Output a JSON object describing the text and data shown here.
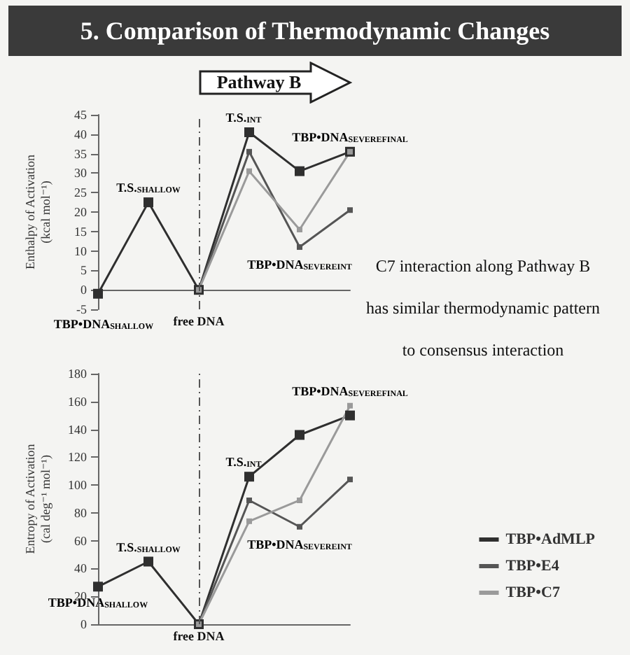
{
  "chart_data": [
    {
      "type": "line",
      "title": "5. Comparison of Thermodynamic Changes",
      "ylabel": "Enthalpy of Activation\n(kcal mol⁻¹)",
      "categories": [
        null,
        null,
        "free DNA",
        null,
        null,
        null
      ],
      "series": [
        {
          "color": "#2f2f2f",
          "values": [
            -1,
            22.5,
            0,
            40.5,
            30.5,
            35.5
          ]
        },
        {
          "color": "#555555",
          "values": [
            null,
            null,
            0,
            35.5,
            11,
            20.5
          ]
        },
        {
          "color": "#9a9a9a",
          "values": [
            null,
            null,
            0,
            30.5,
            15.5,
            35.5
          ]
        }
      ],
      "ylim": [
        -5,
        45
      ],
      "yticks": [
        -5,
        0,
        5,
        10,
        15,
        20,
        25,
        30,
        35,
        40,
        45
      ],
      "marker": "square",
      "ref_lines": [
        {
          "axis": "x",
          "value": "free DNA",
          "line_style": "dashed"
        }
      ],
      "annotations": [
        {
          "text": "T.S.$_{SHALLOW}$",
          "y": 22.5
        },
        {
          "text": "TBP•DNA$_{SHALLOW}$",
          "y": -1
        },
        {
          "text": "T.S.$_{INT}$",
          "y": 40.5
        },
        {
          "text": "TBP•DNA$_{SEVEREINT}$",
          "y": 11
        },
        {
          "text": "TBP•DNA$_{SEVEREFINAL}$",
          "y": 35.5
        },
        "Pathway B",
        "C7 interaction along Pathway B",
        "has similar thermodynamic pattern",
        "to consensus interaction"
      ]
    },
    {
      "type": "line",
      "ylabel": "Entropy of Activation\n(cal deg⁻¹ mol⁻¹)",
      "categories": [
        null,
        null,
        "free DNA",
        null,
        null,
        null
      ],
      "series": [
        {
          "name": "TBP•AdMLP",
          "color": "#2f2f2f",
          "values": [
            27,
            45,
            0,
            106,
            136,
            150
          ]
        },
        {
          "name": "TBP•E4",
          "color": "#555555",
          "values": [
            null,
            null,
            0,
            89,
            70,
            104
          ]
        },
        {
          "name": "TBP•C7",
          "color": "#9a9a9a",
          "values": [
            null,
            null,
            0,
            74,
            89,
            157
          ]
        }
      ],
      "ylim": [
        0,
        180
      ],
      "yticks": [
        0,
        20,
        40,
        60,
        80,
        100,
        120,
        140,
        160,
        180
      ],
      "marker": "square",
      "legend": "right",
      "ref_lines": [
        {
          "axis": "x",
          "value": "free DNA",
          "line_style": "dashed"
        }
      ],
      "annotations": [
        {
          "text": "T.S.$_{SHALLOW}$",
          "y": 45
        },
        {
          "text": "TBP•DNA$_{SHALLOW}$",
          "y": 27
        },
        {
          "text": "T.S.$_{INT}$",
          "y": 106
        },
        {
          "text": "TBP•DNA$_{SEVEREINT}$",
          "y": 70
        },
        {
          "text": "TBP•DNA$_{SEVEREFINAL}$",
          "y": 157
        }
      ]
    }
  ]
}
